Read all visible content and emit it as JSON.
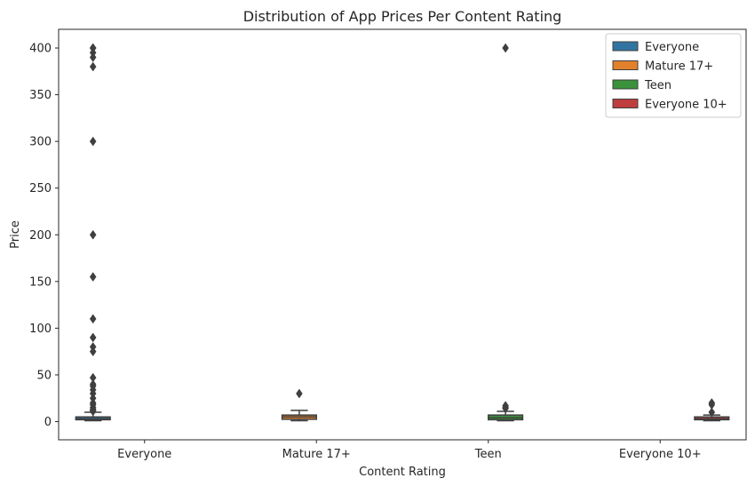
{
  "chart_data": {
    "type": "box",
    "title": "Distribution of App Prices Per Content Rating",
    "xlabel": "Content Rating",
    "ylabel": "Price",
    "categories": [
      "Everyone",
      "Mature 17+",
      "Teen",
      "Everyone 10+"
    ],
    "ylim": [
      -19.5,
      420
    ],
    "yticks": [
      0,
      50,
      100,
      150,
      200,
      250,
      300,
      350,
      400
    ],
    "grid": false,
    "legend": {
      "placement": "top-right",
      "entries": [
        "Everyone",
        "Mature 17+",
        "Teen",
        "Everyone 10+"
      ]
    },
    "series": [
      {
        "name": "Everyone",
        "color": "#3274a1",
        "q1": 1.99,
        "median": 2.99,
        "q3": 4.99,
        "whisker_low": 0.99,
        "whisker_high": 9.99,
        "outliers": [
          400,
          399.99,
          399.99,
          394.99,
          389.99,
          379.99,
          299.99,
          200,
          154.99,
          109.99,
          89.99,
          79.99,
          74.99,
          46.99,
          39.99,
          37.99,
          33.99,
          29.99,
          24.99,
          19.99,
          17.99,
          14.99,
          12.99,
          11.99,
          10.99
        ]
      },
      {
        "name": "Mature 17+",
        "color": "#e1812c",
        "q1": 2.49,
        "median": 4.99,
        "q3": 6.99,
        "whisker_low": 0.99,
        "whisker_high": 11.99,
        "outliers": [
          29.99
        ]
      },
      {
        "name": "Teen",
        "color": "#3a923a",
        "q1": 1.99,
        "median": 3.99,
        "q3": 6.99,
        "whisker_low": 0.99,
        "whisker_high": 10.99,
        "outliers": [
          399.99,
          16.99,
          14.99,
          13.99
        ]
      },
      {
        "name": "Everyone 10+",
        "color": "#c03d3e",
        "q1": 1.99,
        "median": 2.99,
        "q3": 4.99,
        "whisker_low": 0.99,
        "whisker_high": 6.99,
        "outliers": [
          19.99,
          17.99,
          9.99
        ]
      }
    ]
  }
}
